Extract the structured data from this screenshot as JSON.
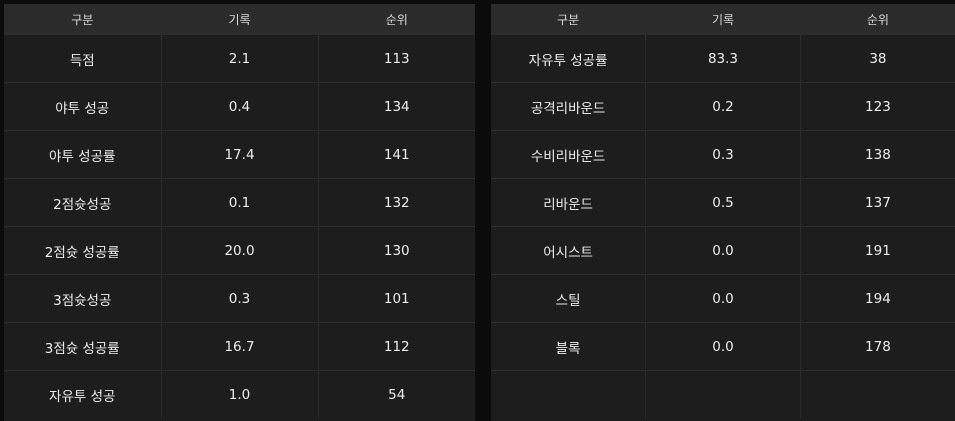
{
  "headers": [
    "구분",
    "기록",
    "순위"
  ],
  "left_table": [
    [
      "득점",
      "2.1",
      "113"
    ],
    [
      "야투 성공",
      "0.4",
      "134"
    ],
    [
      "야투 성공률",
      "17.4",
      "141"
    ],
    [
      "2점슛성공",
      "0.1",
      "132"
    ],
    [
      "2점슛 성공률",
      "20.0",
      "130"
    ],
    [
      "3점슛성공",
      "0.3",
      "101"
    ],
    [
      "3점슛 성공률",
      "16.7",
      "112"
    ],
    [
      "자유투 성공",
      "1.0",
      "54"
    ]
  ],
  "right_table": [
    [
      "자유투 성공률",
      "83.3",
      "38"
    ],
    [
      "공격리바운드",
      "0.2",
      "123"
    ],
    [
      "수비리바운드",
      "0.3",
      "138"
    ],
    [
      "리바운드",
      "0.5",
      "137"
    ],
    [
      "어시스트",
      "0.0",
      "191"
    ],
    [
      "스틸",
      "0.0",
      "194"
    ],
    [
      "블록",
      "0.0",
      "178"
    ],
    [
      "",
      "",
      ""
    ]
  ]
}
